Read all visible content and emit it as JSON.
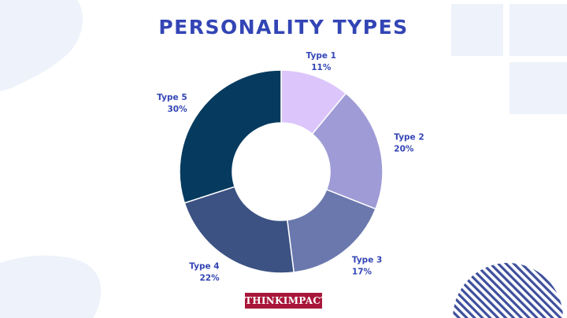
{
  "chart_data": {
    "type": "pie",
    "title": "PERSONALITY TYPES",
    "categories": [
      "Type 1",
      "Type 2",
      "Type 3",
      "Type 4",
      "Type 5"
    ],
    "values": [
      11,
      20,
      17,
      22,
      30
    ],
    "value_labels": [
      "11%",
      "20%",
      "17%",
      "22%",
      "30%"
    ],
    "colors": [
      "#dcc5fb",
      "#9e9bd6",
      "#6a78ad",
      "#3b5283",
      "#063a5e"
    ],
    "style": "donut",
    "legend": "none"
  },
  "brand": {
    "text": "THINKIMPACT",
    "color": "#a8173a"
  }
}
